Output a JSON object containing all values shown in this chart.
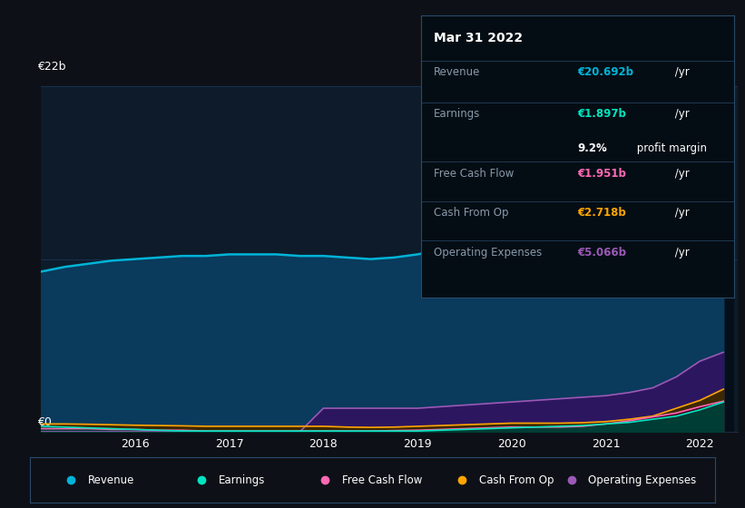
{
  "bg_color": "#0d1117",
  "chart_bg": "#0d1b2a",
  "grid_color": "#1e3a5f",
  "ylabel_text": "€22b",
  "y0_text": "€0",
  "years": [
    2015.0,
    2015.25,
    2015.5,
    2015.75,
    2016.0,
    2016.25,
    2016.5,
    2016.75,
    2017.0,
    2017.25,
    2017.5,
    2017.75,
    2018.0,
    2018.25,
    2018.5,
    2018.75,
    2019.0,
    2019.25,
    2019.5,
    2019.75,
    2020.0,
    2020.25,
    2020.5,
    2020.75,
    2021.0,
    2021.25,
    2021.5,
    2021.75,
    2022.0,
    2022.25
  ],
  "revenue": [
    10.2,
    10.5,
    10.7,
    10.9,
    11.0,
    11.1,
    11.2,
    11.2,
    11.3,
    11.3,
    11.3,
    11.2,
    11.2,
    11.1,
    11.0,
    11.1,
    11.3,
    11.6,
    11.9,
    12.1,
    12.3,
    12.0,
    11.7,
    11.5,
    11.6,
    12.0,
    14.0,
    17.0,
    20.0,
    20.692
  ],
  "earnings": [
    0.35,
    0.3,
    0.25,
    0.2,
    0.15,
    0.1,
    0.05,
    0.05,
    0.05,
    0.05,
    0.05,
    0.05,
    0.05,
    0.05,
    0.05,
    0.05,
    0.05,
    0.1,
    0.15,
    0.2,
    0.25,
    0.3,
    0.35,
    0.4,
    0.5,
    0.6,
    0.8,
    1.0,
    1.4,
    1.897
  ],
  "free_cash_flow": [
    0.2,
    0.2,
    0.2,
    0.15,
    0.15,
    0.1,
    0.1,
    0.05,
    0.05,
    0.05,
    0.05,
    0.05,
    0.05,
    0.05,
    0.05,
    0.08,
    0.1,
    0.15,
    0.2,
    0.25,
    0.3,
    0.3,
    0.3,
    0.35,
    0.5,
    0.7,
    0.95,
    1.2,
    1.6,
    1.951
  ],
  "cash_from_op": [
    0.5,
    0.5,
    0.48,
    0.45,
    0.42,
    0.4,
    0.38,
    0.35,
    0.35,
    0.35,
    0.35,
    0.35,
    0.35,
    0.3,
    0.28,
    0.3,
    0.35,
    0.4,
    0.45,
    0.5,
    0.55,
    0.55,
    0.55,
    0.58,
    0.65,
    0.8,
    1.0,
    1.5,
    2.0,
    2.718
  ],
  "op_expenses": [
    0.0,
    0.0,
    0.0,
    0.0,
    0.0,
    0.0,
    0.0,
    0.0,
    0.0,
    0.0,
    0.0,
    0.0,
    1.5,
    1.5,
    1.5,
    1.5,
    1.5,
    1.6,
    1.7,
    1.8,
    1.9,
    2.0,
    2.1,
    2.2,
    2.3,
    2.5,
    2.8,
    3.5,
    4.5,
    5.066
  ],
  "revenue_color": "#00b4d8",
  "revenue_fill": "#0a3a5c",
  "earnings_color": "#00e5c0",
  "earnings_fill": "#003d35",
  "fcf_color": "#ff69b4",
  "fcf_fill": "#4a0020",
  "cashop_color": "#ffa500",
  "cashop_fill": "#3d2800",
  "opex_color": "#9b59b6",
  "opex_fill": "#2d1660",
  "highlight_x_start": 2021.0,
  "highlight_x_end": 2022.35,
  "ylim": [
    0,
    22
  ],
  "xlim_start": 2015.0,
  "xlim_end": 2022.4,
  "xtick_positions": [
    2016,
    2017,
    2018,
    2019,
    2020,
    2021,
    2022
  ],
  "xtick_labels": [
    "2016",
    "2017",
    "2018",
    "2019",
    "2020",
    "2021",
    "2022"
  ],
  "info_box": {
    "date": "Mar 31 2022",
    "revenue_label": "Revenue",
    "revenue_val": "€20.692b",
    "revenue_unit": " /yr",
    "revenue_color": "#00b4d8",
    "earnings_label": "Earnings",
    "earnings_val": "€1.897b",
    "earnings_unit": " /yr",
    "earnings_color": "#00e5c0",
    "margin_text": "9.2%",
    "margin_label": " profit margin",
    "fcf_label": "Free Cash Flow",
    "fcf_val": "€1.951b",
    "fcf_unit": " /yr",
    "fcf_color": "#ff69b4",
    "cashop_label": "Cash From Op",
    "cashop_val": "€2.718b",
    "cashop_unit": " /yr",
    "cashop_color": "#ffa500",
    "opex_label": "Operating Expenses",
    "opex_val": "€5.066b",
    "opex_unit": " /yr",
    "opex_color": "#9b59b6"
  },
  "legend_items": [
    {
      "label": "Revenue",
      "color": "#00b4d8"
    },
    {
      "label": "Earnings",
      "color": "#00e5c0"
    },
    {
      "label": "Free Cash Flow",
      "color": "#ff69b4"
    },
    {
      "label": "Cash From Op",
      "color": "#ffa500"
    },
    {
      "label": "Operating Expenses",
      "color": "#9b59b6"
    }
  ]
}
